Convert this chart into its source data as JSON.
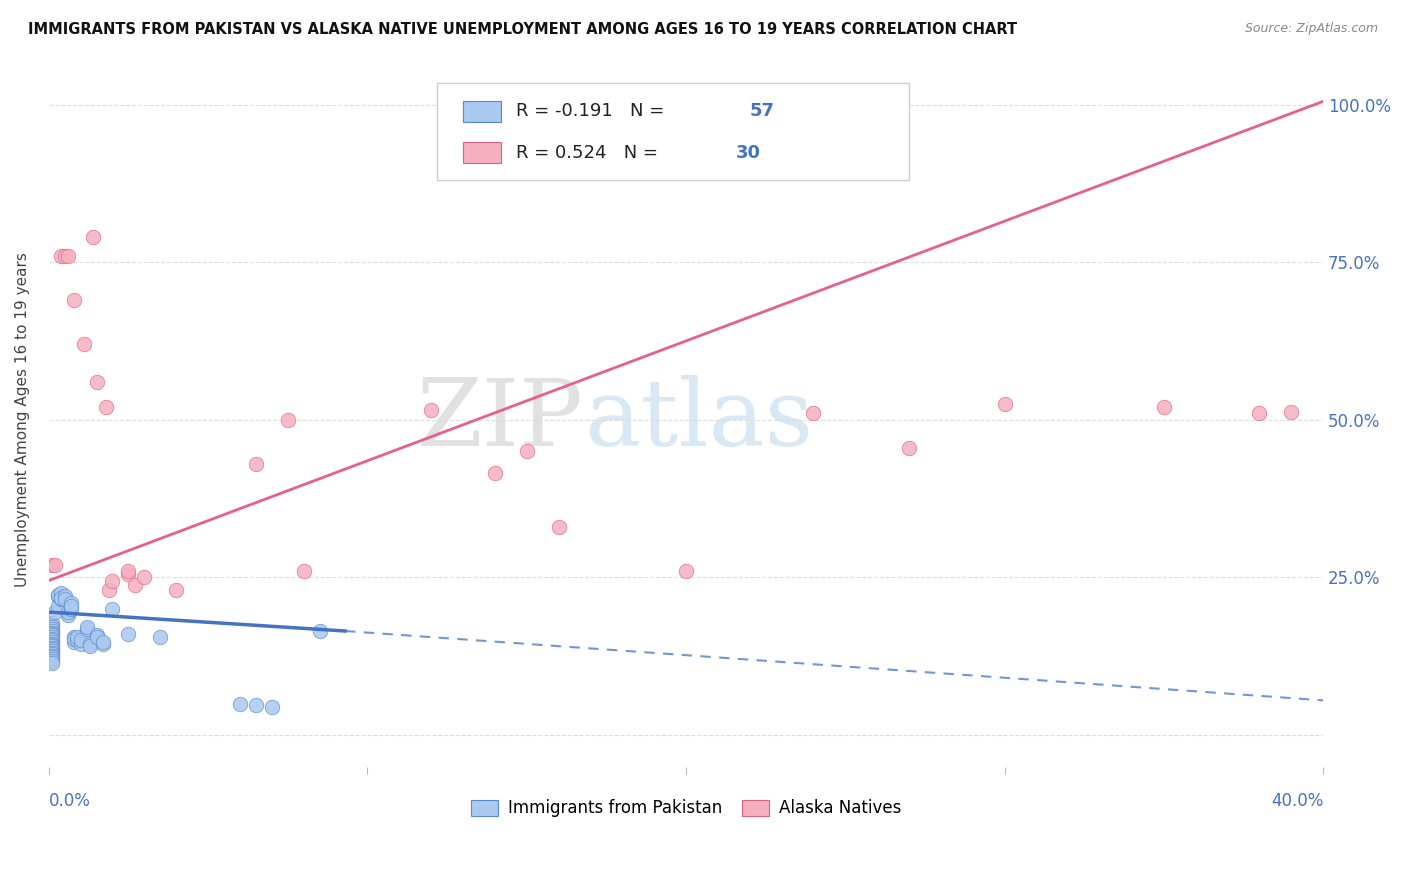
{
  "title": "IMMIGRANTS FROM PAKISTAN VS ALASKA NATIVE UNEMPLOYMENT AMONG AGES 16 TO 19 YEARS CORRELATION CHART",
  "source": "Source: ZipAtlas.com",
  "ylabel": "Unemployment Among Ages 16 to 19 years",
  "watermark_zip": "ZIP",
  "watermark_atlas": "atlas",
  "legend_blue_label": "Immigrants from Pakistan",
  "legend_pink_label": "Alaska Natives",
  "blue_color": "#aac8f0",
  "pink_color": "#f5b0c0",
  "blue_edge_color": "#5588cc",
  "pink_edge_color": "#e06080",
  "blue_line_color": "#4472c4",
  "pink_line_color": "#e8608a",
  "text_color_dark": "#333333",
  "text_color_blue": "#4472c4",
  "grid_color": "#dddddd",
  "blue_scatter": [
    [
      0.001,
      0.175
    ],
    [
      0.001,
      0.178
    ],
    [
      0.001,
      0.171
    ],
    [
      0.001,
      0.168
    ],
    [
      0.001,
      0.165
    ],
    [
      0.001,
      0.162
    ],
    [
      0.001,
      0.16
    ],
    [
      0.001,
      0.158
    ],
    [
      0.001,
      0.155
    ],
    [
      0.001,
      0.152
    ],
    [
      0.001,
      0.15
    ],
    [
      0.001,
      0.148
    ],
    [
      0.001,
      0.145
    ],
    [
      0.001,
      0.143
    ],
    [
      0.001,
      0.141
    ],
    [
      0.001,
      0.138
    ],
    [
      0.001,
      0.136
    ],
    [
      0.001,
      0.133
    ],
    [
      0.001,
      0.13
    ],
    [
      0.001,
      0.128
    ],
    [
      0.001,
      0.126
    ],
    [
      0.001,
      0.123
    ],
    [
      0.001,
      0.12
    ],
    [
      0.001,
      0.118
    ],
    [
      0.001,
      0.115
    ],
    [
      0.002,
      0.195
    ],
    [
      0.003,
      0.205
    ],
    [
      0.003,
      0.22
    ],
    [
      0.003,
      0.222
    ],
    [
      0.004,
      0.225
    ],
    [
      0.004,
      0.215
    ],
    [
      0.004,
      0.218
    ],
    [
      0.005,
      0.22
    ],
    [
      0.005,
      0.215
    ],
    [
      0.006,
      0.19
    ],
    [
      0.006,
      0.195
    ],
    [
      0.007,
      0.21
    ],
    [
      0.007,
      0.2
    ],
    [
      0.007,
      0.205
    ],
    [
      0.008,
      0.155
    ],
    [
      0.008,
      0.148
    ],
    [
      0.008,
      0.152
    ],
    [
      0.009,
      0.15
    ],
    [
      0.009,
      0.155
    ],
    [
      0.01,
      0.145
    ],
    [
      0.01,
      0.15
    ],
    [
      0.012,
      0.168
    ],
    [
      0.012,
      0.172
    ],
    [
      0.013,
      0.145
    ],
    [
      0.013,
      0.142
    ],
    [
      0.015,
      0.158
    ],
    [
      0.015,
      0.155
    ],
    [
      0.017,
      0.145
    ],
    [
      0.017,
      0.148
    ],
    [
      0.02,
      0.2
    ],
    [
      0.025,
      0.16
    ],
    [
      0.035,
      0.155
    ],
    [
      0.06,
      0.05
    ],
    [
      0.065,
      0.048
    ],
    [
      0.07,
      0.045
    ],
    [
      0.085,
      0.165
    ]
  ],
  "pink_scatter": [
    [
      0.001,
      0.27
    ],
    [
      0.002,
      0.27
    ],
    [
      0.004,
      0.76
    ],
    [
      0.005,
      0.76
    ],
    [
      0.006,
      0.76
    ],
    [
      0.008,
      0.69
    ],
    [
      0.011,
      0.62
    ],
    [
      0.014,
      0.79
    ],
    [
      0.015,
      0.56
    ],
    [
      0.018,
      0.52
    ],
    [
      0.019,
      0.23
    ],
    [
      0.02,
      0.245
    ],
    [
      0.025,
      0.255
    ],
    [
      0.025,
      0.26
    ],
    [
      0.027,
      0.238
    ],
    [
      0.03,
      0.25
    ],
    [
      0.04,
      0.23
    ],
    [
      0.065,
      0.43
    ],
    [
      0.075,
      0.5
    ],
    [
      0.08,
      0.26
    ],
    [
      0.12,
      0.515
    ],
    [
      0.14,
      0.415
    ],
    [
      0.15,
      0.45
    ],
    [
      0.16,
      0.33
    ],
    [
      0.2,
      0.26
    ],
    [
      0.24,
      0.51
    ],
    [
      0.27,
      0.455
    ],
    [
      0.3,
      0.525
    ],
    [
      0.35,
      0.52
    ],
    [
      0.38,
      0.51
    ],
    [
      0.39,
      0.512
    ]
  ],
  "pink_trendline": [
    [
      0.0,
      0.245
    ],
    [
      0.4,
      1.005
    ]
  ],
  "blue_trendline_solid": [
    [
      0.0,
      0.195
    ],
    [
      0.093,
      0.165
    ]
  ],
  "blue_trendline_dash": [
    [
      0.093,
      0.165
    ],
    [
      0.4,
      0.055
    ]
  ],
  "xlim": [
    0.0,
    0.4
  ],
  "ylim": [
    -0.05,
    1.05
  ],
  "xticks": [
    0.0,
    0.1,
    0.2,
    0.3,
    0.4
  ],
  "yticks": [
    0.0,
    0.25,
    0.5,
    0.75,
    1.0
  ],
  "yticklabels_right": [
    "",
    "25.0%",
    "50.0%",
    "75.0%",
    "100.0%"
  ],
  "background_color": "#ffffff"
}
